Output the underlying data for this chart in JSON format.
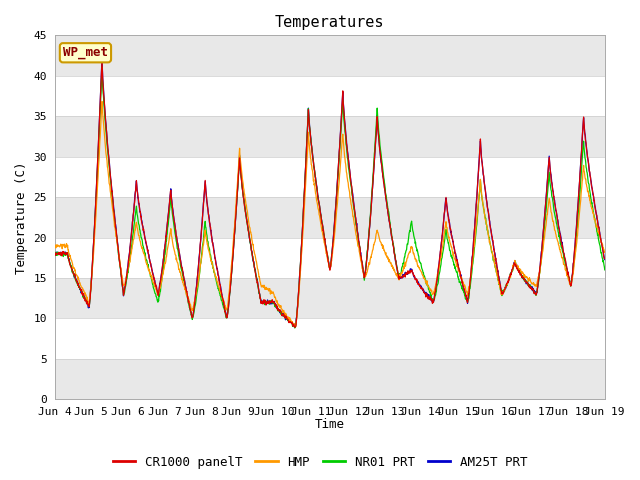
{
  "title": "Temperatures",
  "ylabel": "Temperature (C)",
  "xlabel": "Time",
  "ylim": [
    0,
    45
  ],
  "yticks": [
    0,
    5,
    10,
    15,
    20,
    25,
    30,
    35,
    40,
    45
  ],
  "xtick_labels": [
    "Jun 4",
    "Jun 5",
    "Jun 6",
    "Jun 7",
    "Jun 8",
    "Jun 9",
    "Jun 10",
    "Jun 11",
    "Jun 12",
    "Jun 13",
    "Jun 14",
    "Jun 15",
    "Jun 16",
    "Jun 17",
    "Jun 18",
    "Jun 19"
  ],
  "legend_station": "WP_met",
  "legend_entries": [
    "CR1000 panelT",
    "HMP",
    "NR01 PRT",
    "AM25T PRT"
  ],
  "line_colors": [
    "#dd0000",
    "#ff9900",
    "#00cc00",
    "#0000cc"
  ],
  "fig_bg_color": "#ffffff",
  "plot_bg_color": "#ffffff",
  "band_gray": "#e8e8e8",
  "band_white": "#ffffff",
  "title_fontsize": 11,
  "axis_fontsize": 9,
  "tick_fontsize": 8,
  "station_fontsize": 9,
  "legend_fontsize": 9
}
